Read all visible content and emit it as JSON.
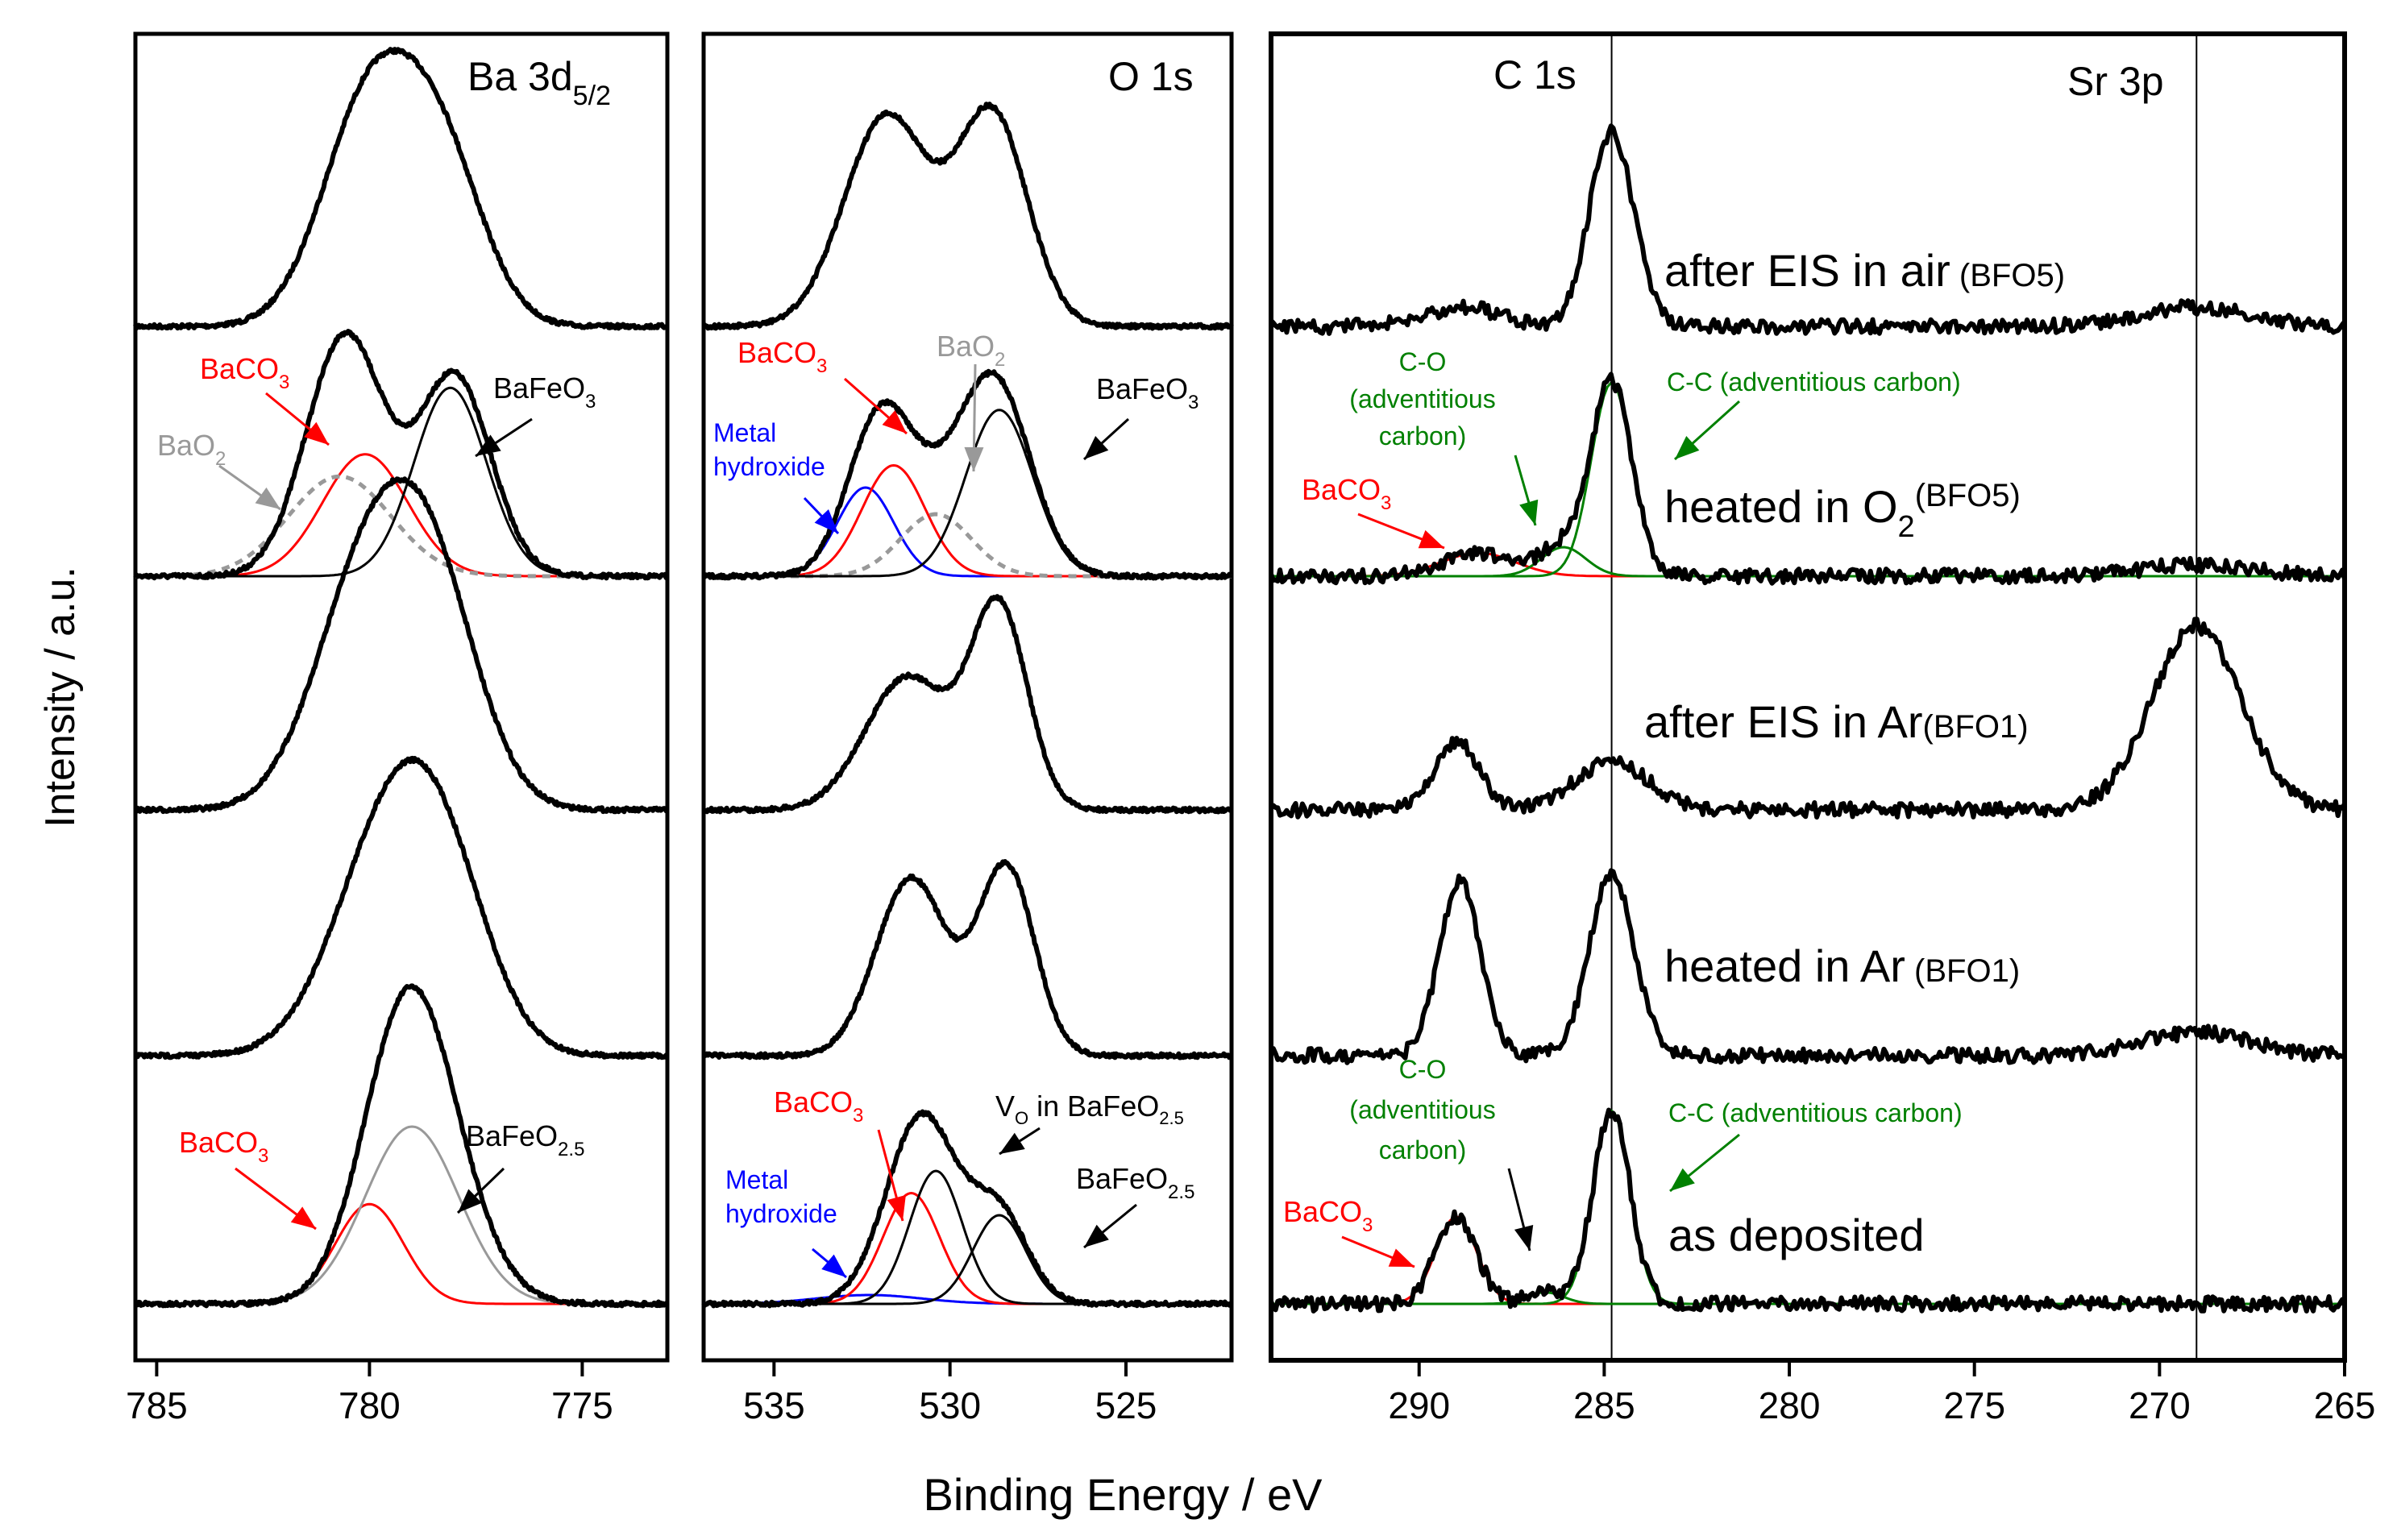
{
  "figure": {
    "ylabel": "Intensity / a.u.",
    "xlabel": "Binding Energy / eV"
  },
  "chart_data": [
    {
      "type": "line",
      "title": "Ba 3d5/2",
      "title_main": "Ba 3d",
      "title_sub": "5/2",
      "xlabel": "Binding Energy / eV",
      "ylabel": "Intensity / a.u.",
      "xlim": [
        785.5,
        773
      ],
      "xticks": [
        785,
        780,
        775
      ],
      "series": [
        {
          "name": "after EIS in air",
          "peaks": [
            {
              "c": 780.0,
              "h": 1.0,
              "w": 1.1
            },
            {
              "c": 778.3,
              "h": 0.7,
              "w": 1.0
            }
          ],
          "offset": 4.0,
          "scale": 1.0
        },
        {
          "name": "heated in O2",
          "peaks": [
            {
              "c": 780.5,
              "h": 0.85,
              "w": 0.9
            },
            {
              "c": 778.0,
              "h": 0.9,
              "w": 0.85
            },
            {
              "c": 780.8,
              "h": 0.25,
              "w": 0.9
            }
          ],
          "offset": 3.0,
          "scale": 1.0
        },
        {
          "name": "after EIS in Ar",
          "peaks": [
            {
              "c": 780.1,
              "h": 1.0,
              "w": 1.2
            },
            {
              "c": 778.5,
              "h": 0.9,
              "w": 1.1
            }
          ],
          "offset": 2.0,
          "scale": 1.0
        },
        {
          "name": "heated in Ar",
          "peaks": [
            {
              "c": 779.5,
              "h": 1.1,
              "w": 1.3
            },
            {
              "c": 778.2,
              "h": 0.6,
              "w": 1.1
            }
          ],
          "offset": 1.0,
          "scale": 0.9
        },
        {
          "name": "as deposited",
          "peaks": [
            {
              "c": 779.2,
              "h": 1.0,
              "w": 1.0
            },
            {
              "c": 778.5,
              "h": 0.5,
              "w": 1.1
            }
          ],
          "offset": 0.0,
          "scale": 1.0
        }
      ],
      "fits": [
        {
          "series": "heated in O2",
          "name": "BaCO3",
          "color": "#ff0000",
          "c": 780.1,
          "h": 0.55,
          "w": 1.0
        },
        {
          "series": "heated in O2",
          "name": "BaO2",
          "color": "#999999",
          "dash": true,
          "c": 780.7,
          "h": 0.45,
          "w": 1.2
        },
        {
          "series": "heated in O2",
          "name": "BaFeO3",
          "color": "#000000",
          "c": 778.1,
          "h": 0.85,
          "w": 0.85
        },
        {
          "series": "as deposited",
          "name": "BaCO3",
          "color": "#ff0000",
          "c": 780.0,
          "h": 0.45,
          "w": 0.8
        },
        {
          "series": "as deposited",
          "name": "BaFeO2.5",
          "color": "#999999",
          "c": 779.0,
          "h": 0.8,
          "w": 1.1
        }
      ],
      "annotations": [
        {
          "text": "BaCO",
          "sub": "3",
          "color": "#ff0000"
        },
        {
          "text": "BaO",
          "sub": "2",
          "color": "#999999"
        },
        {
          "text": "BaFeO",
          "sub": "3",
          "color": "#000000"
        },
        {
          "text": "BaCO",
          "sub": "3",
          "color": "#ff0000"
        },
        {
          "text": "BaFeO",
          "sub": "2.5",
          "color": "#000000"
        }
      ]
    },
    {
      "type": "line",
      "title": "O 1s",
      "xlabel": "Binding Energy / eV",
      "ylabel": "Intensity / a.u.",
      "xlim": [
        537,
        522
      ],
      "xticks": [
        535,
        530,
        525
      ],
      "series": [
        {
          "name": "after EIS in air",
          "peaks": [
            {
              "c": 531.8,
              "h": 0.95,
              "w": 1.2
            },
            {
              "c": 528.8,
              "h": 0.95,
              "w": 1.0
            }
          ],
          "offset": 4.0,
          "scale": 1.0
        },
        {
          "name": "heated in O2",
          "peaks": [
            {
              "c": 532.0,
              "h": 0.7,
              "w": 0.9
            },
            {
              "c": 528.7,
              "h": 0.85,
              "w": 1.0
            },
            {
              "c": 530.4,
              "h": 0.25,
              "w": 1.0
            }
          ],
          "offset": 3.0,
          "scale": 1.0
        },
        {
          "name": "after EIS in Ar",
          "peaks": [
            {
              "c": 531.2,
              "h": 0.6,
              "w": 1.2
            },
            {
              "c": 528.6,
              "h": 0.9,
              "w": 0.8
            }
          ],
          "offset": 2.0,
          "scale": 1.0
        },
        {
          "name": "heated in Ar",
          "peaks": [
            {
              "c": 531.1,
              "h": 0.8,
              "w": 1.0
            },
            {
              "c": 528.4,
              "h": 0.85,
              "w": 0.8
            }
          ],
          "offset": 1.0,
          "scale": 1.0
        },
        {
          "name": "as deposited",
          "peaks": [
            {
              "c": 530.8,
              "h": 0.85,
              "w": 1.0
            },
            {
              "c": 528.6,
              "h": 0.4,
              "w": 0.8
            }
          ],
          "offset": 0.0,
          "scale": 1.0
        }
      ],
      "fits": [
        {
          "series": "heated in O2",
          "name": "Metal hydroxide",
          "color": "#0000ff",
          "c": 532.4,
          "h": 0.4,
          "w": 0.8
        },
        {
          "series": "heated in O2",
          "name": "BaCO3",
          "color": "#ff0000",
          "c": 531.6,
          "h": 0.5,
          "w": 0.9
        },
        {
          "series": "heated in O2",
          "name": "BaO2",
          "color": "#999999",
          "dash": true,
          "c": 530.4,
          "h": 0.28,
          "w": 1.0
        },
        {
          "series": "heated in O2",
          "name": "BaFeO3",
          "color": "#000000",
          "c": 528.6,
          "h": 0.75,
          "w": 0.95
        },
        {
          "series": "as deposited",
          "name": "Metal hydroxide",
          "color": "#0000ff",
          "c": 532.3,
          "h": 0.04,
          "w": 1.5
        },
        {
          "series": "as deposited",
          "name": "BaCO3",
          "color": "#ff0000",
          "c": 531.1,
          "h": 0.5,
          "w": 0.8
        },
        {
          "series": "as deposited",
          "name": "VO in BaFeO2.5",
          "color": "#000000",
          "c": 530.4,
          "h": 0.6,
          "w": 0.75
        },
        {
          "series": "as deposited",
          "name": "BaFeO2.5",
          "color": "#000000",
          "c": 528.6,
          "h": 0.4,
          "w": 0.75
        }
      ],
      "annotations": [
        {
          "text": "BaCO",
          "sub": "3",
          "color": "#ff0000"
        },
        {
          "text": "BaO",
          "sub": "2",
          "color": "#999999"
        },
        {
          "text": "BaFeO",
          "sub": "3",
          "color": "#000000"
        },
        {
          "text": "Metal",
          "color": "#0000ff"
        },
        {
          "text": "hydroxide",
          "color": "#0000ff"
        },
        {
          "text": "V",
          "sub": "O",
          "rest": " in BaFeO",
          "sub2": "2.5",
          "color": "#000000"
        },
        {
          "text": "BaCO",
          "sub": "3",
          "color": "#ff0000"
        },
        {
          "text": "BaFeO",
          "sub": "2.5",
          "color": "#000000"
        },
        {
          "text": "Metal",
          "color": "#0000ff"
        },
        {
          "text": "hydroxide",
          "color": "#0000ff"
        }
      ]
    },
    {
      "type": "line",
      "title": "C 1s / Sr 3p",
      "title_left": "C 1s",
      "title_right": "Sr 3p",
      "xlabel": "Binding Energy / eV",
      "ylabel": "Intensity / a.u.",
      "xlim": [
        294,
        265
      ],
      "xticks": [
        290,
        285,
        280,
        275,
        270,
        265
      ],
      "reference_lines": [
        284.8,
        269.0
      ],
      "series": [
        {
          "name": "after EIS in air (BFO5)",
          "peaks": [
            {
              "c": 284.8,
              "h": 1.0,
              "w": 0.6
            },
            {
              "c": 288.8,
              "h": 0.1,
              "w": 1.0
            },
            {
              "c": 269.0,
              "h": 0.1,
              "w": 1.5
            }
          ],
          "offset": 4.0,
          "scale": 1.0
        },
        {
          "name": "heated in O2 (BFO5)",
          "peaks": [
            {
              "c": 284.8,
              "h": 1.0,
              "w": 0.55
            },
            {
              "c": 288.4,
              "h": 0.12,
              "w": 1.0
            },
            {
              "c": 286.1,
              "h": 0.15,
              "w": 0.6
            },
            {
              "c": 269.0,
              "h": 0.06,
              "w": 1.5
            }
          ],
          "offset": 3.0,
          "scale": 1.0
        },
        {
          "name": "after EIS in Ar (BFO1)",
          "peaks": [
            {
              "c": 289.0,
              "h": 0.35,
              "w": 0.6
            },
            {
              "c": 284.8,
              "h": 0.25,
              "w": 1.0
            },
            {
              "c": 269.0,
              "h": 0.95,
              "w": 1.2
            }
          ],
          "offset": 2.0,
          "scale": 1.0
        },
        {
          "name": "heated in Ar (BFO1)",
          "peaks": [
            {
              "c": 288.9,
              "h": 0.9,
              "w": 0.55
            },
            {
              "c": 284.8,
              "h": 0.95,
              "w": 0.6
            },
            {
              "c": 269.0,
              "h": 0.12,
              "w": 1.5
            }
          ],
          "offset": 1.0,
          "scale": 1.0
        },
        {
          "name": "as deposited",
          "peaks": [
            {
              "c": 289.0,
              "h": 0.45,
              "w": 0.55
            },
            {
              "c": 284.8,
              "h": 1.0,
              "w": 0.5
            },
            {
              "c": 286.6,
              "h": 0.06,
              "w": 0.5
            }
          ],
          "offset": 0.0,
          "scale": 1.0
        }
      ],
      "fits": [
        {
          "series": "heated in O2 (BFO5)",
          "name": "BaCO3",
          "color": "#ff0000",
          "c": 288.4,
          "h": 0.12,
          "w": 1.0
        },
        {
          "series": "heated in O2 (BFO5)",
          "name": "C-O (adventitious carbon)",
          "color": "#008000",
          "c": 286.1,
          "h": 0.15,
          "w": 0.6
        },
        {
          "series": "heated in O2 (BFO5)",
          "name": "C-C (adventitious carbon)",
          "color": "#008000",
          "c": 284.8,
          "h": 1.0,
          "w": 0.55
        },
        {
          "series": "as deposited",
          "name": "BaCO3",
          "color": "#ff0000",
          "c": 289.0,
          "h": 0.45,
          "w": 0.55
        },
        {
          "series": "as deposited",
          "name": "C-O (adventitious carbon)",
          "color": "#008000",
          "c": 286.6,
          "h": 0.06,
          "w": 0.5
        },
        {
          "series": "as deposited",
          "name": "C-C (adventitious carbon)",
          "color": "#008000",
          "c": 284.8,
          "h": 1.0,
          "w": 0.5
        }
      ],
      "annotations": [
        {
          "text": "C-O",
          "color": "#008000"
        },
        {
          "text": "(adventitious",
          "color": "#008000"
        },
        {
          "text": "carbon)",
          "color": "#008000"
        },
        {
          "text": "C-C (adventitious carbon)",
          "color": "#008000"
        },
        {
          "text": "BaCO",
          "sub": "3",
          "color": "#ff0000"
        },
        {
          "text": "C-O",
          "color": "#008000"
        },
        {
          "text": "(adventitious",
          "color": "#008000"
        },
        {
          "text": "carbon)",
          "color": "#008000"
        },
        {
          "text": "C-C (adventitious carbon)",
          "color": "#008000"
        },
        {
          "text": "BaCO",
          "sub": "3",
          "color": "#ff0000"
        }
      ],
      "spectrum_labels": [
        {
          "text": "after EIS in air",
          "small": " (BFO5)"
        },
        {
          "text": "heated in O",
          "sub": "2",
          "small": "(BFO5)"
        },
        {
          "text": "after EIS in Ar",
          "small": "(BFO1)"
        },
        {
          "text": "heated in Ar",
          "small": " (BFO1)"
        },
        {
          "text": "as deposited",
          "small": ""
        }
      ]
    }
  ]
}
